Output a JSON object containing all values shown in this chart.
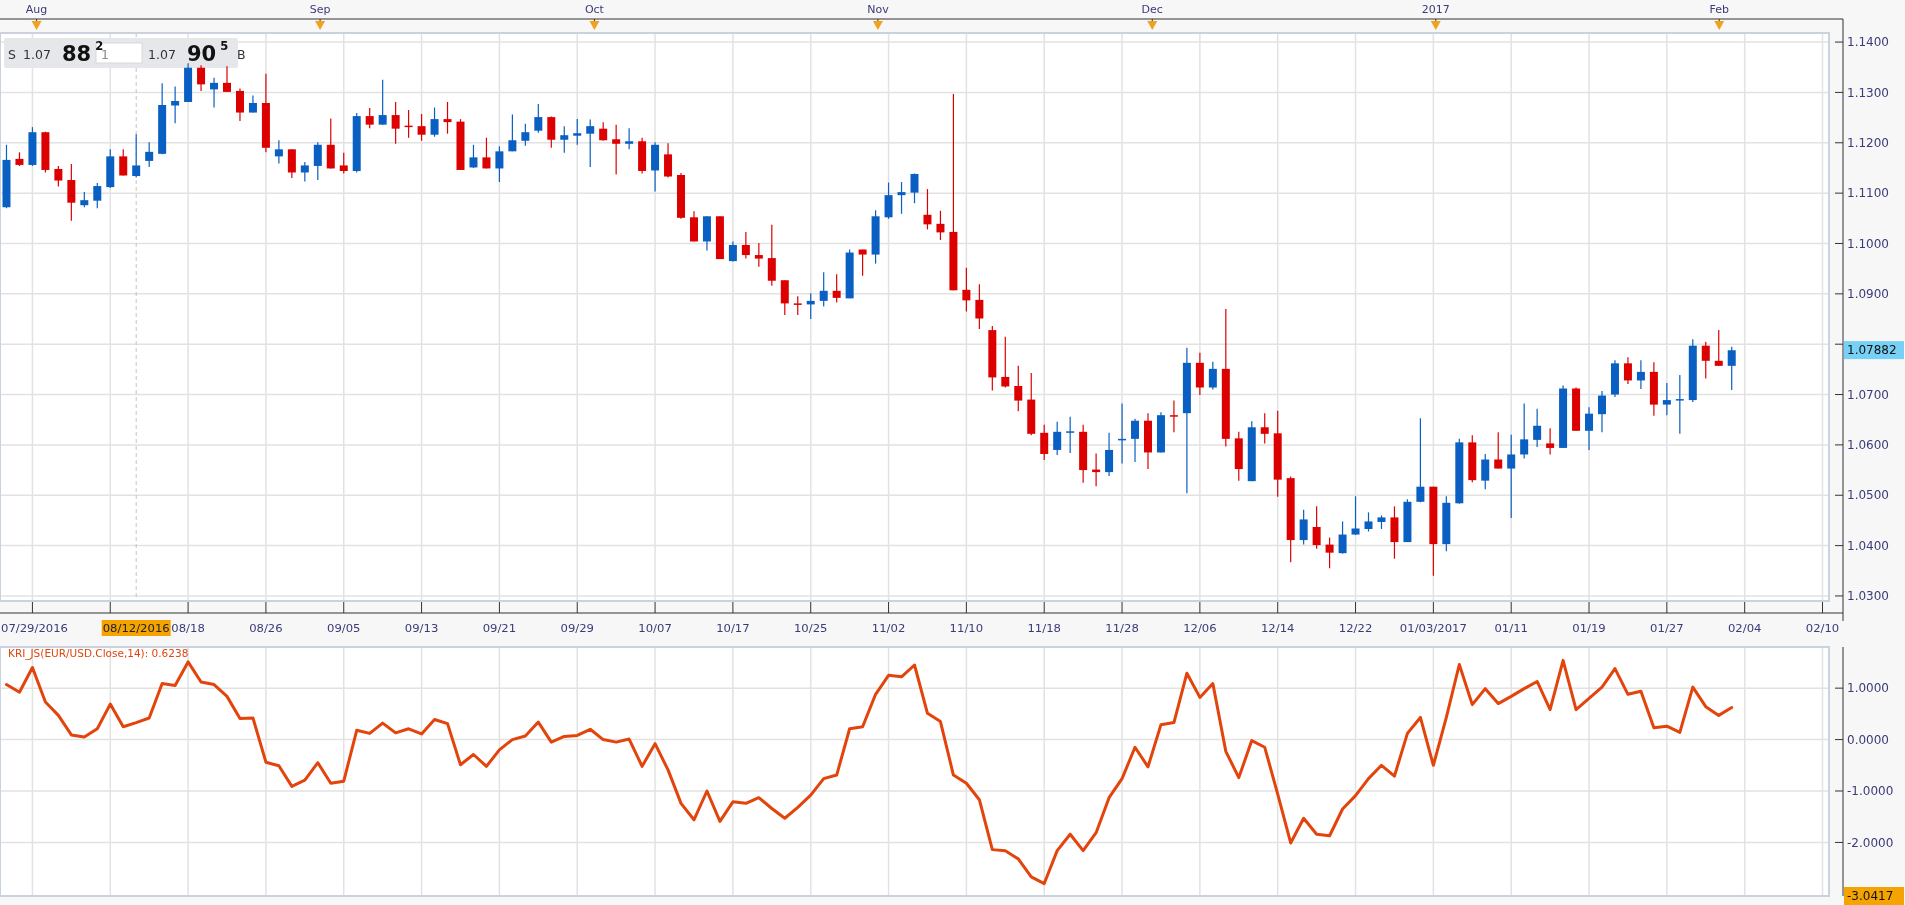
{
  "chart_data": [
    {
      "type": "candlestick",
      "categories": [
        null,
        null,
        "07/29/2016",
        null,
        null,
        null,
        null,
        null,
        null,
        null,
        "08/12/2016",
        null,
        null,
        null,
        "08/18",
        null,
        null,
        null,
        null,
        null,
        "08/26",
        null,
        null,
        null,
        null,
        null,
        "09/05",
        null,
        null,
        null,
        null,
        null,
        "09/13",
        null,
        null,
        null,
        null,
        null,
        "09/21",
        null,
        null,
        null,
        null,
        null,
        "09/29",
        null,
        null,
        null,
        null,
        null,
        "10/07",
        null,
        null,
        null,
        null,
        null,
        "10/17",
        null,
        null,
        null,
        null,
        null,
        "10/25",
        null,
        null,
        null,
        null,
        null,
        "11/02",
        null,
        null,
        null,
        null,
        null,
        "11/10",
        null,
        null,
        null,
        null,
        null,
        "11/18",
        null,
        null,
        null,
        null,
        null,
        "11/28",
        null,
        null,
        null,
        null,
        null,
        "12/06",
        null,
        null,
        null,
        null,
        null,
        "12/14",
        null,
        null,
        null,
        null,
        null,
        "12/22",
        null,
        null,
        null,
        null,
        null,
        "01/03/2017",
        null,
        null,
        null,
        null,
        null,
        "01/11",
        null,
        null,
        null,
        null,
        null,
        "01/19",
        null,
        null,
        null,
        null,
        null,
        "01/27",
        null,
        null,
        null,
        null,
        null,
        "02/04",
        null,
        null,
        null,
        null,
        null,
        "02/10"
      ],
      "ohlc": [
        [
          1.1072,
          1.1196,
          1.107,
          1.1166
        ],
        [
          1.1168,
          1.1181,
          1.1154,
          1.1156
        ],
        [
          1.1156,
          1.1231,
          1.1154,
          1.1221
        ],
        [
          1.1221,
          1.1222,
          1.1141,
          1.1146
        ],
        [
          1.1148,
          1.1154,
          1.1113,
          1.1125
        ],
        [
          1.1126,
          1.1158,
          1.1045,
          1.1081
        ],
        [
          1.1076,
          1.1102,
          1.1072,
          1.1086
        ],
        [
          1.1085,
          1.112,
          1.107,
          1.1114
        ],
        [
          1.1112,
          1.1187,
          1.111,
          1.1173
        ],
        [
          1.1173,
          1.1187,
          1.1135,
          1.1135
        ],
        [
          1.1134,
          1.1217,
          1.1131,
          1.1155
        ],
        [
          1.1164,
          1.1201,
          1.1152,
          1.1182
        ],
        [
          1.1178,
          1.1318,
          1.1177,
          1.1275
        ],
        [
          1.1274,
          1.1312,
          1.1239,
          1.1283
        ],
        [
          1.1281,
          1.1358,
          1.1281,
          1.1349
        ],
        [
          1.1349,
          1.1354,
          1.1303,
          1.1316
        ],
        [
          1.1306,
          1.1329,
          1.127,
          1.1319
        ],
        [
          1.1319,
          1.1352,
          1.1301,
          1.1301
        ],
        [
          1.1303,
          1.1308,
          1.1243,
          1.126
        ],
        [
          1.126,
          1.1294,
          1.126,
          1.1279
        ],
        [
          1.1279,
          1.1337,
          1.1181,
          1.119
        ],
        [
          1.1173,
          1.1205,
          1.1159,
          1.1187
        ],
        [
          1.1187,
          1.1187,
          1.113,
          1.1141
        ],
        [
          1.1141,
          1.1162,
          1.1123,
          1.1155
        ],
        [
          1.1154,
          1.1201,
          1.1126,
          1.1196
        ],
        [
          1.1196,
          1.1248,
          1.1149,
          1.1149
        ],
        [
          1.1155,
          1.118,
          1.1139,
          1.1144
        ],
        [
          1.1144,
          1.1259,
          1.1141,
          1.1253
        ],
        [
          1.1253,
          1.1269,
          1.1229,
          1.1236
        ],
        [
          1.1236,
          1.1325,
          1.1236,
          1.1255
        ],
        [
          1.1255,
          1.1281,
          1.1198,
          1.1228
        ],
        [
          1.1234,
          1.1265,
          1.121,
          1.1233
        ],
        [
          1.1233,
          1.1257,
          1.1204,
          1.1216
        ],
        [
          1.1216,
          1.127,
          1.1212,
          1.1247
        ],
        [
          1.1247,
          1.1281,
          1.1218,
          1.1241
        ],
        [
          1.1242,
          1.1247,
          1.1146,
          1.1146
        ],
        [
          1.1151,
          1.1196,
          1.115,
          1.1171
        ],
        [
          1.1171,
          1.121,
          1.1149,
          1.1149
        ],
        [
          1.1149,
          1.1193,
          1.1122,
          1.1183
        ],
        [
          1.1183,
          1.1256,
          1.1183,
          1.1205
        ],
        [
          1.1204,
          1.1238,
          1.1194,
          1.1221
        ],
        [
          1.1224,
          1.1277,
          1.122,
          1.1251
        ],
        [
          1.1251,
          1.1252,
          1.119,
          1.1206
        ],
        [
          1.1206,
          1.1233,
          1.118,
          1.1215
        ],
        [
          1.1214,
          1.1247,
          1.1196,
          1.1219
        ],
        [
          1.1218,
          1.1246,
          1.1152,
          1.1233
        ],
        [
          1.1228,
          1.1241,
          1.1204,
          1.1205
        ],
        [
          1.1207,
          1.1236,
          1.1137,
          1.1198
        ],
        [
          1.1198,
          1.1229,
          1.1187,
          1.1203
        ],
        [
          1.1203,
          1.121,
          1.1139,
          1.1144
        ],
        [
          1.1145,
          1.1201,
          1.1103,
          1.1196
        ],
        [
          1.1177,
          1.1199,
          1.1131,
          1.1133
        ],
        [
          1.1136,
          1.114,
          1.1049,
          1.1051
        ],
        [
          1.1052,
          1.1064,
          1.1004,
          1.1004
        ],
        [
          1.1004,
          1.1054,
          1.0986,
          1.1054
        ],
        [
          1.1054,
          1.1054,
          1.0969,
          1.0969
        ],
        [
          1.0965,
          1.1004,
          1.0964,
          1.0997
        ],
        [
          1.0997,
          1.1023,
          1.097,
          1.0977
        ],
        [
          1.0977,
          1.1001,
          1.0954,
          1.097
        ],
        [
          1.0971,
          1.1037,
          1.0916,
          1.0926
        ],
        [
          1.0927,
          1.0927,
          1.0858,
          1.0881
        ],
        [
          1.0881,
          1.0895,
          1.0858,
          1.0879
        ],
        [
          1.0879,
          1.0901,
          1.085,
          1.0886
        ],
        [
          1.0886,
          1.0943,
          1.0875,
          1.0906
        ],
        [
          1.0906,
          1.0939,
          1.0883,
          1.0892
        ],
        [
          1.0891,
          1.0988,
          1.0891,
          1.0982
        ],
        [
          1.0988,
          1.0988,
          1.0936,
          1.0978
        ],
        [
          1.0978,
          1.1066,
          1.096,
          1.1054
        ],
        [
          1.1052,
          1.1121,
          1.1049,
          1.1096
        ],
        [
          1.1096,
          1.1122,
          1.1059,
          1.1102
        ],
        [
          1.1101,
          1.1139,
          1.108,
          1.1138
        ],
        [
          1.1057,
          1.1108,
          1.1028,
          1.1038
        ],
        [
          1.1039,
          1.1065,
          1.1007,
          1.1022
        ],
        [
          1.1023,
          1.1297,
          1.0907,
          1.0907
        ],
        [
          1.0908,
          1.0952,
          1.0865,
          1.0887
        ],
        [
          1.0888,
          1.0919,
          1.083,
          1.0851
        ],
        [
          1.0828,
          1.0836,
          1.0708,
          1.0734
        ],
        [
          1.0735,
          1.0815,
          1.0714,
          1.0716
        ],
        [
          1.0717,
          1.0757,
          1.0667,
          1.0688
        ],
        [
          1.069,
          1.0743,
          1.0619,
          1.0622
        ],
        [
          1.0624,
          1.064,
          1.057,
          1.0582
        ],
        [
          1.059,
          1.0646,
          1.058,
          1.0626
        ],
        [
          1.0625,
          1.0656,
          1.0584,
          1.0627
        ],
        [
          1.0626,
          1.064,
          1.0525,
          1.055
        ],
        [
          1.0551,
          1.0583,
          1.0518,
          1.0546
        ],
        [
          1.0546,
          1.0624,
          1.0538,
          1.059
        ],
        [
          1.061,
          1.0682,
          1.0563,
          1.0612
        ],
        [
          1.0612,
          1.0652,
          1.0566,
          1.0648
        ],
        [
          1.0648,
          1.0663,
          1.0552,
          1.0585
        ],
        [
          1.0585,
          1.0665,
          1.0585,
          1.0659
        ],
        [
          1.0659,
          1.0688,
          1.0625,
          1.0657
        ],
        [
          1.0663,
          1.0793,
          1.0504,
          1.0763
        ],
        [
          1.0763,
          1.0783,
          1.0699,
          1.0714
        ],
        [
          1.0714,
          1.0765,
          1.071,
          1.0751
        ],
        [
          1.0751,
          1.087,
          1.0597,
          1.0612
        ],
        [
          1.0613,
          1.0626,
          1.0529,
          1.0552
        ],
        [
          1.0528,
          1.0647,
          1.0528,
          1.0635
        ],
        [
          1.0635,
          1.0663,
          1.0603,
          1.0622
        ],
        [
          1.0623,
          1.0668,
          1.0497,
          1.0531
        ],
        [
          1.0534,
          1.0537,
          1.0367,
          1.0411
        ],
        [
          1.0411,
          1.0471,
          1.0402,
          1.0452
        ],
        [
          1.0437,
          1.0478,
          1.0394,
          1.0401
        ],
        [
          1.0402,
          1.0416,
          1.0355,
          1.0386
        ],
        [
          1.0385,
          1.0448,
          1.0384,
          1.0422
        ],
        [
          1.0422,
          1.0498,
          1.0421,
          1.0434
        ],
        [
          1.0433,
          1.0466,
          1.0428,
          1.0448
        ],
        [
          1.0447,
          1.046,
          1.0433,
          1.0456
        ],
        [
          1.0456,
          1.0478,
          1.0374,
          1.0407
        ],
        [
          1.0407,
          1.0492,
          1.0407,
          1.0487
        ],
        [
          1.0487,
          1.0653,
          1.0486,
          1.0517
        ],
        [
          1.0517,
          1.0517,
          1.034,
          1.0403
        ],
        [
          1.0403,
          1.0498,
          1.0389,
          1.0485
        ],
        [
          1.0484,
          1.0612,
          1.0483,
          1.0605
        ],
        [
          1.0605,
          1.0619,
          1.0526,
          1.053
        ],
        [
          1.0529,
          1.0582,
          1.0512,
          1.0571
        ],
        [
          1.0571,
          1.0625,
          1.0553,
          1.0553
        ],
        [
          1.0553,
          1.062,
          1.0455,
          1.0581
        ],
        [
          1.0581,
          1.0682,
          1.0573,
          1.0611
        ],
        [
          1.061,
          1.0672,
          1.0596,
          1.0638
        ],
        [
          1.0603,
          1.0633,
          1.0581,
          1.0594
        ],
        [
          1.0594,
          1.0718,
          1.0594,
          1.0712
        ],
        [
          1.0712,
          1.0714,
          1.0628,
          1.0628
        ],
        [
          1.0628,
          1.0675,
          1.059,
          1.0662
        ],
        [
          1.0661,
          1.0707,
          1.0625,
          1.0698
        ],
        [
          1.07,
          1.0768,
          1.0695,
          1.0762
        ],
        [
          1.0762,
          1.0774,
          1.0721,
          1.0728
        ],
        [
          1.0728,
          1.0768,
          1.0711,
          1.0745
        ],
        [
          1.0745,
          1.0764,
          1.0658,
          1.068
        ],
        [
          1.068,
          1.0723,
          1.0659,
          1.0689
        ],
        [
          1.0689,
          1.0739,
          1.0622,
          1.0691
        ],
        [
          1.0689,
          1.081,
          1.0685,
          1.0797
        ],
        [
          1.0797,
          1.0805,
          1.0732,
          1.0767
        ],
        [
          1.0767,
          1.0828,
          1.0757,
          1.0757
        ],
        [
          1.0757,
          1.0795,
          1.0709,
          1.0788
        ],
        null,
        null,
        null,
        null,
        null,
        null,
        null
      ],
      "colors": [
        "#0a5fc2",
        "#dd0000",
        "#0a5fc2",
        "#dd0000",
        "#dd0000",
        "#dd0000",
        "#0a5fc2",
        "#0a5fc2",
        "#0a5fc2",
        "#dd0000",
        "#0a5fc2",
        "#0a5fc2",
        "#0a5fc2",
        "#0a5fc2",
        "#0a5fc2",
        "#dd0000",
        "#0a5fc2",
        "#dd0000",
        "#dd0000",
        "#0a5fc2",
        "#dd0000",
        "#0a5fc2",
        "#dd0000",
        "#0a5fc2",
        "#0a5fc2",
        "#dd0000",
        "#dd0000",
        "#0a5fc2",
        "#dd0000",
        "#0a5fc2",
        "#dd0000",
        "#dd0000",
        "#dd0000",
        "#0a5fc2",
        "#dd0000",
        "#dd0000",
        "#0a5fc2",
        "#dd0000",
        "#0a5fc2",
        "#0a5fc2",
        "#0a5fc2",
        "#0a5fc2",
        "#dd0000",
        "#0a5fc2",
        "#0a5fc2",
        "#0a5fc2",
        "#dd0000",
        "#dd0000",
        "#0a5fc2",
        "#dd0000",
        "#0a5fc2",
        "#dd0000",
        "#dd0000",
        "#dd0000",
        "#0a5fc2",
        "#dd0000",
        "#0a5fc2",
        "#dd0000",
        "#dd0000",
        "#dd0000",
        "#dd0000",
        "#dd0000",
        "#0a5fc2",
        "#0a5fc2",
        "#dd0000",
        "#0a5fc2",
        "#dd0000",
        "#0a5fc2",
        "#0a5fc2",
        "#0a5fc2",
        "#0a5fc2",
        "#dd0000",
        "#dd0000",
        "#dd0000",
        "#dd0000",
        "#dd0000",
        "#dd0000",
        "#dd0000",
        "#dd0000",
        "#dd0000",
        "#dd0000",
        "#0a5fc2",
        "#0a5fc2",
        "#dd0000",
        "#dd0000",
        "#0a5fc2",
        "#0a5fc2",
        "#0a5fc2",
        "#dd0000",
        "#0a5fc2",
        "#dd0000",
        "#0a5fc2",
        "#dd0000",
        "#0a5fc2",
        "#dd0000",
        "#dd0000",
        "#0a5fc2",
        "#dd0000",
        "#dd0000",
        "#dd0000",
        "#0a5fc2",
        "#dd0000",
        "#dd0000",
        "#0a5fc2",
        "#0a5fc2",
        "#0a5fc2",
        "#0a5fc2",
        "#dd0000",
        "#0a5fc2",
        "#0a5fc2",
        "#dd0000",
        "#0a5fc2",
        "#0a5fc2",
        "#dd0000",
        "#0a5fc2",
        "#dd0000",
        "#0a5fc2",
        "#0a5fc2",
        "#0a5fc2",
        "#dd0000",
        "#0a5fc2",
        "#dd0000",
        "#0a5fc2",
        "#0a5fc2",
        "#0a5fc2",
        "#dd0000",
        "#0a5fc2",
        "#dd0000",
        "#0a5fc2",
        "#0a5fc2",
        "#0a5fc2",
        "#dd0000",
        "#dd0000",
        "#0a5fc2",
        null,
        null,
        null,
        null,
        null,
        null,
        null
      ],
      "x2lim": [
        "2016-07-28",
        "2017-02-13"
      ],
      "x2ticks": [
        {
          "value": "2016-08-01",
          "label": "Aug"
        },
        {
          "value": "2016-09-01",
          "label": "Sep"
        },
        {
          "value": "2016-10-01",
          "label": "Oct"
        },
        {
          "value": "2016-11-01",
          "label": "Nov"
        },
        {
          "value": "2016-12-01",
          "label": "Dec"
        },
        {
          "value": "2017-01-01",
          "label": "2017"
        },
        {
          "value": "2017-02-01",
          "label": "Feb"
        }
      ],
      "ylim": [
        1.029,
        1.1418
      ],
      "yticks": [
        {
          "value": 1.03,
          "label": "1.0300"
        },
        {
          "value": 1.04,
          "label": "1.0400"
        },
        {
          "value": 1.05,
          "label": "1.0500"
        },
        {
          "value": 1.06,
          "label": "1.0600"
        },
        {
          "value": 1.07,
          "label": "1.0700"
        },
        {
          "value": 1.08,
          "label": null
        },
        {
          "value": 1.09,
          "label": "1.0900"
        },
        {
          "value": 1.1,
          "label": "1.1000"
        },
        {
          "value": 1.11,
          "label": "1.1100"
        },
        {
          "value": 1.12,
          "label": "1.1200"
        },
        {
          "value": 1.13,
          "label": "1.1300"
        },
        {
          "value": 1.14,
          "label": "1.1400"
        }
      ],
      "grid": true,
      "ref_lines": [
        {
          "axis": "x",
          "value": "08/12/2016",
          "line_style": "dashed"
        }
      ],
      "annotations": [
        "S 1.07 88$^{2}$",
        "1",
        "1.07 90$^{5}$ B",
        "1.07882"
      ]
    },
    {
      "type": "line",
      "title": "KRI_JS(EUR/USD.Close,14): 0.6238",
      "categories": [
        null,
        null,
        null,
        null,
        null,
        null,
        null,
        null,
        null,
        null,
        null,
        null,
        null,
        null,
        null,
        null,
        null,
        null,
        null,
        null,
        null,
        null,
        null,
        null,
        null,
        null,
        null,
        null,
        null,
        null,
        null,
        null,
        null,
        null,
        null,
        null,
        null,
        null,
        null,
        null,
        null,
        null,
        null,
        null,
        null,
        null,
        null,
        null,
        null,
        null,
        null,
        null,
        null,
        null,
        null,
        null,
        null,
        null,
        null,
        null,
        null,
        null,
        null,
        null,
        null,
        null,
        null,
        null,
        null,
        null,
        null,
        null,
        null,
        null,
        null,
        null,
        null,
        null,
        null,
        null,
        null,
        null,
        null,
        null,
        null,
        null,
        null,
        null,
        null,
        null,
        null,
        null,
        null,
        null,
        null,
        null,
        null,
        null,
        null,
        null,
        null,
        null,
        null,
        null,
        null,
        null,
        null,
        null,
        null,
        null,
        null,
        null,
        null,
        null,
        null,
        null,
        null,
        null,
        null,
        null,
        null,
        null,
        null,
        null,
        null,
        null,
        null,
        null,
        null,
        null,
        null,
        null,
        null,
        null,
        null,
        null,
        null,
        null,
        null,
        null,
        null
      ],
      "series": [
        {
          "color": "#e2440c",
          "values": [
            1.07,
            0.92,
            1.4,
            0.73,
            0.47,
            0.09,
            0.05,
            0.21,
            0.69,
            0.25,
            0.33,
            0.42,
            1.09,
            1.05,
            1.51,
            1.12,
            1.07,
            0.84,
            0.41,
            0.42,
            -0.44,
            -0.51,
            -0.91,
            -0.79,
            -0.45,
            -0.85,
            -0.81,
            0.18,
            0.12,
            0.32,
            0.13,
            0.21,
            0.11,
            0.39,
            0.31,
            -0.49,
            -0.29,
            -0.52,
            -0.2,
            0.0,
            0.07,
            0.34,
            -0.05,
            0.06,
            0.08,
            0.2,
            0.0,
            -0.05,
            0.01,
            -0.52,
            -0.08,
            -0.59,
            -1.24,
            -1.56,
            -1.0,
            -1.59,
            -1.21,
            -1.24,
            -1.13,
            -1.34,
            -1.53,
            -1.32,
            -1.08,
            -0.76,
            -0.69,
            0.21,
            0.25,
            0.88,
            1.25,
            1.22,
            1.45,
            0.51,
            0.35,
            -0.69,
            -0.85,
            -1.17,
            -2.14,
            -2.16,
            -2.32,
            -2.67,
            -2.8,
            -2.16,
            -1.84,
            -2.16,
            -1.81,
            -1.13,
            -0.76,
            -0.15,
            -0.53,
            0.29,
            0.33,
            1.29,
            0.82,
            1.09,
            -0.23,
            -0.74,
            -0.02,
            -0.15,
            -1.06,
            -2.01,
            -1.53,
            -1.84,
            -1.87,
            -1.35,
            -1.09,
            -0.76,
            -0.5,
            -0.71,
            0.12,
            0.43,
            -0.5,
            0.43,
            1.46,
            0.68,
            0.99,
            0.7,
            0.84,
            0.99,
            1.13,
            0.58,
            1.54,
            0.58,
            0.8,
            1.02,
            1.38,
            0.88,
            0.94,
            0.23,
            0.26,
            0.14,
            1.02,
            0.64,
            0.47,
            0.6238,
            null,
            null,
            null,
            null,
            null,
            null,
            null
          ]
        }
      ],
      "ylim": [
        -3.0417,
        1.8
      ],
      "yticks": [
        {
          "value": -2,
          "label": "-2.0000"
        },
        {
          "value": -1,
          "label": "-1.0000"
        },
        {
          "value": 0,
          "label": "0.0000"
        },
        {
          "value": 1,
          "label": "1.0000"
        }
      ],
      "tick_labels": "y",
      "grid": true,
      "annotations": [
        "-3.0417"
      ]
    }
  ]
}
